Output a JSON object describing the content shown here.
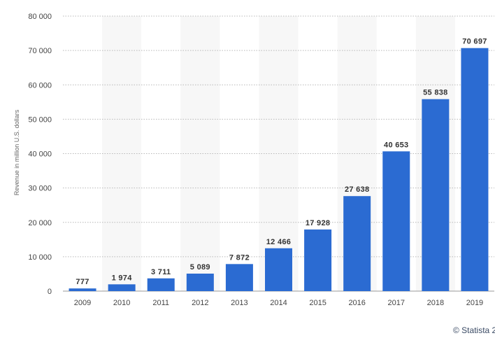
{
  "chart_data": {
    "type": "bar",
    "categories": [
      "2009",
      "2010",
      "2011",
      "2012",
      "2013",
      "2014",
      "2015",
      "2016",
      "2017",
      "2018",
      "2019"
    ],
    "values": [
      777,
      1974,
      3711,
      5089,
      7872,
      12466,
      17928,
      27638,
      40653,
      55838,
      70697
    ],
    "data_labels": [
      "777",
      "1 974",
      "3 711",
      "5 089",
      "7 872",
      "12 466",
      "17 928",
      "27 638",
      "40 653",
      "55 838",
      "70 697"
    ],
    "title": "",
    "xlabel": "",
    "ylabel": "Revenue in million U.S. dollars",
    "ylim": [
      0,
      80000
    ],
    "yticks": [
      0,
      10000,
      20000,
      30000,
      40000,
      50000,
      60000,
      70000,
      80000
    ],
    "ytick_labels": [
      "0",
      "10 000",
      "20 000",
      "30 000",
      "40 000",
      "50 000",
      "60 000",
      "70 000",
      "80 000"
    ],
    "grid": true,
    "legend": "none",
    "bar_color": "#2b6bd2",
    "alternate_band_color": "#f7f7f7"
  },
  "credit": "© Statista 2"
}
